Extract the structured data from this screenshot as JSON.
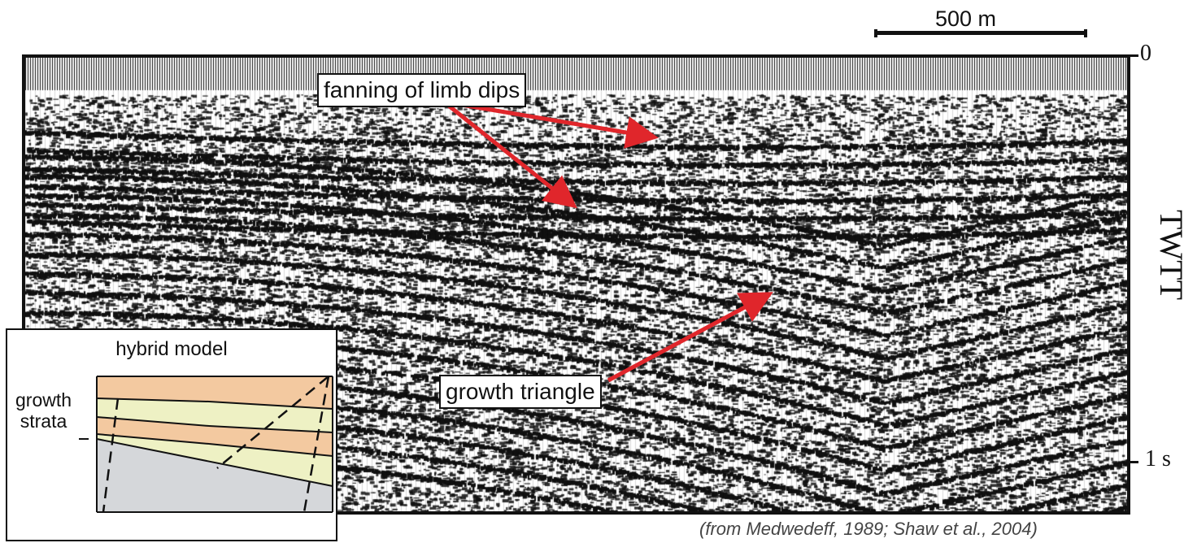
{
  "scale_bar": {
    "label": "500 m"
  },
  "axis": {
    "top_label": "0",
    "bottom_label": "1 s",
    "title": "TWTT"
  },
  "callouts": {
    "fanning": "fanning of limb dips",
    "growth": "growth triangle"
  },
  "inset": {
    "title": "hybrid model",
    "label_line1": "growth",
    "label_line2": "strata"
  },
  "credit": "(from Medwedeff, 1989; Shaw et al., 2004)",
  "colors": {
    "arrow": "#e0262b",
    "orange_layer": "#f3c9a0",
    "yellow_layer": "#eef1c4",
    "basement": "#d5d7da",
    "ink": "#111111"
  }
}
